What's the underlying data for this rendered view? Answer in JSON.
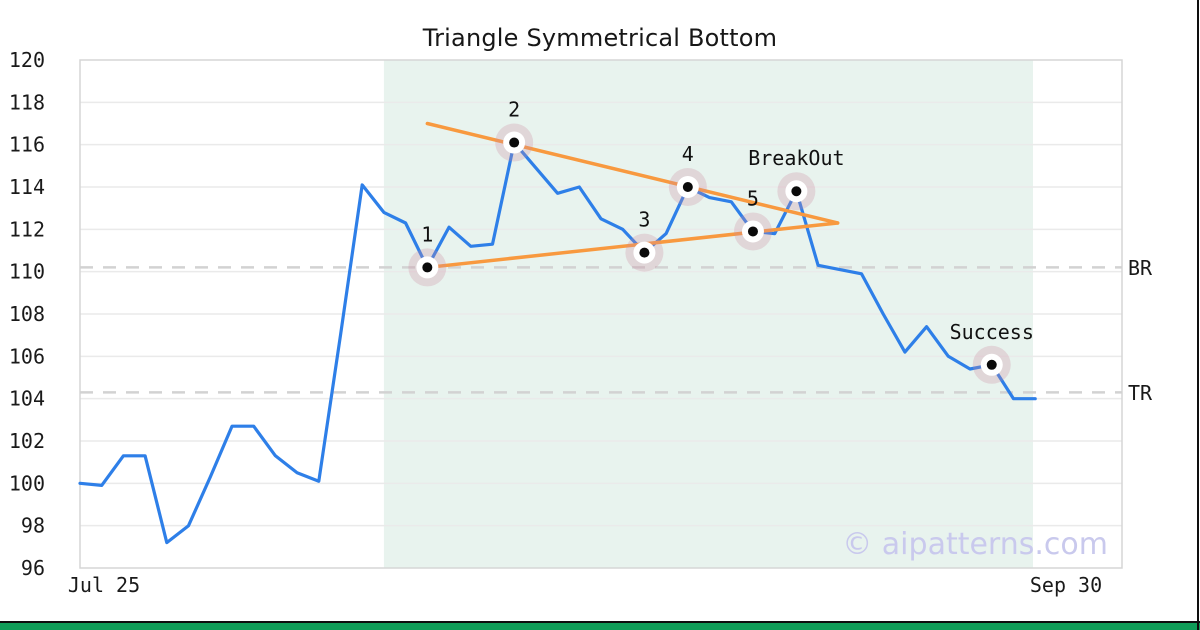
{
  "page": {
    "watermark": "© aipatterns.com"
  },
  "chart": {
    "title": "Triangle Symmetrical Bottom",
    "x_axis": {
      "left_label": "Jul 25",
      "right_label": "Sep 30"
    },
    "y_axis": {
      "ticks": [
        "120",
        "118",
        "116",
        "114",
        "112",
        "110",
        "108",
        "106",
        "104",
        "102",
        "100",
        "98",
        "96"
      ]
    }
  },
  "chart_data": {
    "type": "line",
    "title": "Triangle Symmetrical Bottom",
    "xlabel": "",
    "ylabel": "",
    "x_range_labels": [
      "Jul 25",
      "Sep 30"
    ],
    "ylim": [
      96,
      120
    ],
    "ytick_step": 2,
    "grid": true,
    "series": [
      {
        "name": "price",
        "values": [
          100.0,
          99.9,
          101.3,
          101.3,
          97.2,
          98.0,
          100.3,
          102.7,
          102.7,
          101.3,
          100.5,
          100.1,
          107.0,
          114.1,
          112.8,
          112.3,
          110.2,
          112.1,
          111.2,
          111.3,
          116.1,
          114.9,
          113.7,
          114.0,
          112.5,
          112.0,
          110.9,
          111.8,
          114.0,
          113.5,
          113.3,
          111.9,
          111.8,
          113.8,
          110.3,
          110.1,
          109.9,
          108.0,
          106.2,
          107.4,
          106.0,
          105.4,
          105.6,
          104.0,
          104.0
        ]
      }
    ],
    "pattern_markers": [
      {
        "day": 16,
        "value": 110.2,
        "label": "1"
      },
      {
        "day": 20,
        "value": 116.1,
        "label": "2"
      },
      {
        "day": 26,
        "value": 110.9,
        "label": "3"
      },
      {
        "day": 28,
        "value": 114.0,
        "label": "4"
      },
      {
        "day": 31,
        "value": 111.9,
        "label": "5"
      },
      {
        "day": 33,
        "value": 113.8,
        "label": "BreakOut"
      },
      {
        "day": 42,
        "value": 105.6,
        "label": "Success"
      }
    ],
    "trendlines": [
      {
        "name": "upper",
        "from_day": 16.0,
        "from_value": 117.0,
        "to_day": 34.9,
        "to_value": 112.3
      },
      {
        "name": "lower",
        "from_day": 16.0,
        "from_value": 110.2,
        "to_day": 34.9,
        "to_value": 112.3
      }
    ],
    "levels": [
      {
        "label": "BR",
        "value": 110.2
      },
      {
        "label": "TR",
        "value": 104.3
      }
    ],
    "shaded_region": {
      "from_day": 14.0,
      "to_day": 43.9
    },
    "colors": {
      "price_line": "#2e7fe8",
      "trendline": "#f8993f",
      "shade": "#e8f3ee",
      "marker_halo": "rgba(203,141,161,0.28)",
      "marker_ring": "#ffffff",
      "marker_dot": "#0a0a0a",
      "level_dash": "#d2d2d2",
      "gridline": "#eaeaea",
      "plot_border": "#d6d6d6",
      "tick_text": "#1a1a1a",
      "annotation_text": "#111111",
      "watermark_text": "#c9c9ed",
      "bottom_bar": "#0f9d58"
    }
  }
}
